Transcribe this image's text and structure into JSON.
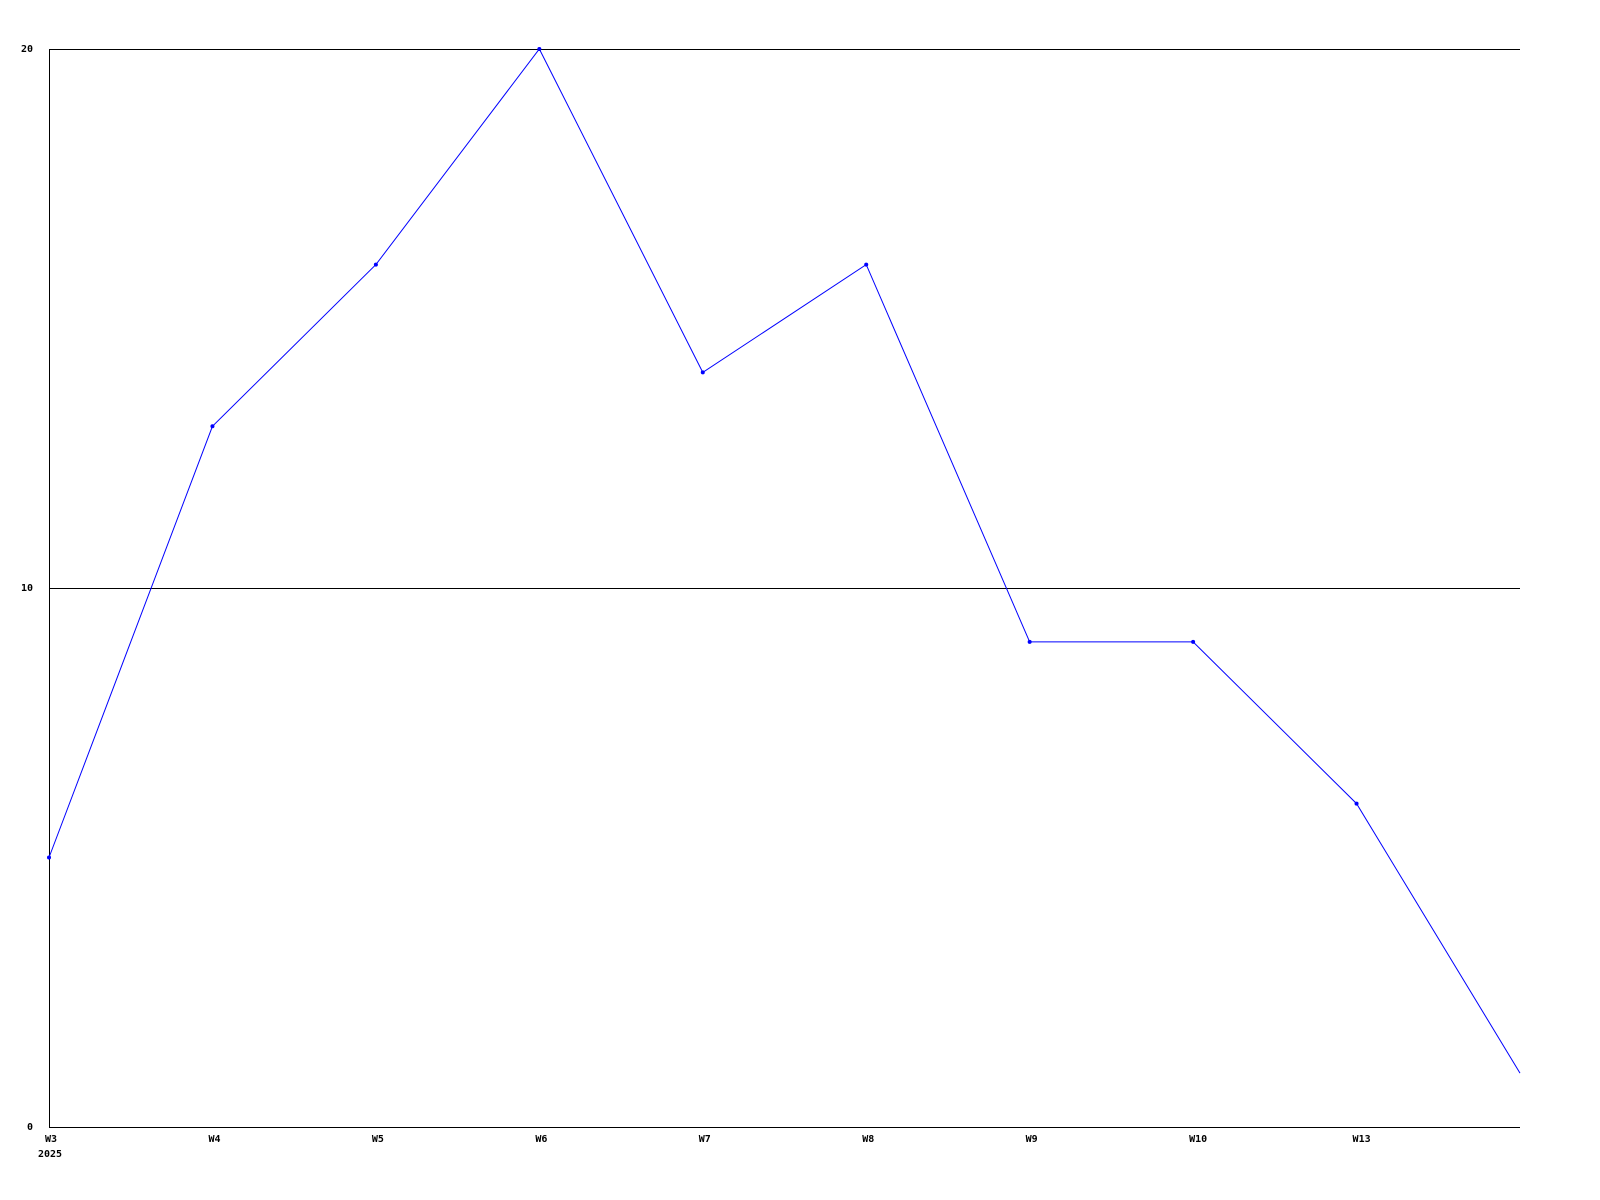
{
  "chart_data": {
    "type": "line",
    "title": "",
    "xlabel": "",
    "ylabel": "",
    "categories": [
      "W3",
      "W4",
      "W5",
      "W6",
      "W7",
      "W8",
      "W9",
      "W10",
      "W13",
      ""
    ],
    "year_label": "2025",
    "series": [
      {
        "values": [
          5,
          13,
          16,
          20,
          14,
          16,
          9,
          9,
          6,
          1
        ],
        "color": "#0000ff"
      }
    ],
    "ylim": [
      0,
      20
    ],
    "yticks": [
      "0",
      "10",
      "20"
    ],
    "grid": "horizontal at y ticks",
    "legend": "none"
  }
}
